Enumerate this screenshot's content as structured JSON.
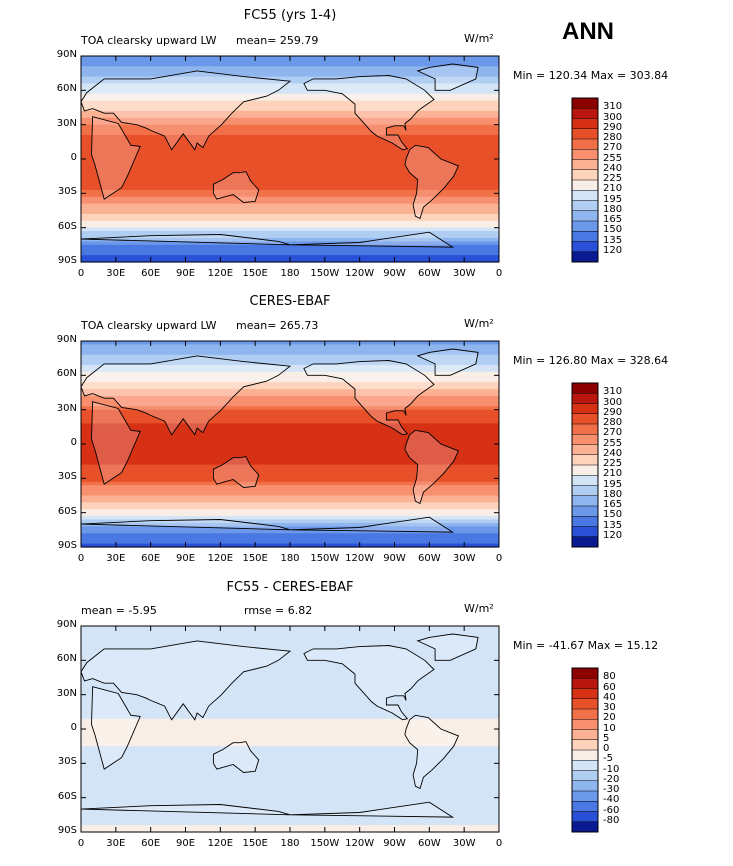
{
  "season": "ANN",
  "panels": [
    {
      "title": "FC55 (yrs 1-4)",
      "left_label": "TOA clearsky upward LW",
      "stat_label": "mean= 259.79",
      "stat2_label": "",
      "units": "W/m²",
      "minmax": "Min = 120.34 Max = 303.84",
      "kind": "field"
    },
    {
      "title": "CERES-EBAF",
      "left_label": "TOA clearsky upward LW",
      "stat_label": "mean= 265.73",
      "stat2_label": "",
      "units": "W/m²",
      "minmax": "Min = 126.80 Max = 328.64",
      "kind": "field2"
    },
    {
      "title": "FC55 - CERES-EBAF",
      "left_label": "",
      "stat_label": "mean =  -5.95",
      "stat2_label": "rmse =   6.82",
      "units": "W/m²",
      "minmax": "Min = -41.67 Max =  15.12",
      "kind": "diff"
    }
  ],
  "chart_data": [
    {
      "type": "heatmap",
      "title": "FC55 (yrs 1-4)",
      "subtitle": "TOA clearsky upward LW",
      "mean": 259.79,
      "min": 120.34,
      "max": 303.84,
      "units": "W/m²",
      "x_ticks": [
        "0",
        "30E",
        "60E",
        "90E",
        "120E",
        "150E",
        "180",
        "150W",
        "120W",
        "90W",
        "60W",
        "30W",
        "0"
      ],
      "y_ticks": [
        "90N",
        "60N",
        "30N",
        "0",
        "30S",
        "60S",
        "90S"
      ],
      "xlim": [
        0,
        360
      ],
      "ylim": [
        -90,
        90
      ],
      "colorbar_levels": [
        "310",
        "300",
        "290",
        "280",
        "270",
        "255",
        "240",
        "225",
        "210",
        "195",
        "180",
        "165",
        "150",
        "135",
        "120"
      ],
      "colorbar_colors": [
        "#8b0000",
        "#b8160e",
        "#d63015",
        "#e8502a",
        "#f27048",
        "#f89070",
        "#fbb194",
        "#fdd3bb",
        "#f8eee6",
        "#d4e4f7",
        "#b0cdf2",
        "#8eb5ee",
        "#6c98ea",
        "#4a78e2",
        "#2a50d8",
        "#0a1a90"
      ],
      "zonal_profile": [
        {
          "lat": 90,
          "value": 150
        },
        {
          "lat": 75,
          "value": 175
        },
        {
          "lat": 60,
          "value": 205
        },
        {
          "lat": 45,
          "value": 235
        },
        {
          "lat": 30,
          "value": 270
        },
        {
          "lat": 15,
          "value": 285
        },
        {
          "lat": 0,
          "value": 288
        },
        {
          "lat": -15,
          "value": 288
        },
        {
          "lat": -30,
          "value": 278
        },
        {
          "lat": -45,
          "value": 245
        },
        {
          "lat": -60,
          "value": 210
        },
        {
          "lat": -75,
          "value": 150
        },
        {
          "lat": -90,
          "value": 125
        }
      ]
    },
    {
      "type": "heatmap",
      "title": "CERES-EBAF",
      "subtitle": "TOA clearsky upward LW",
      "mean": 265.73,
      "min": 126.8,
      "max": 328.64,
      "units": "W/m²",
      "x_ticks": [
        "0",
        "30E",
        "60E",
        "90E",
        "120E",
        "150E",
        "180",
        "150W",
        "120W",
        "90W",
        "60W",
        "30W",
        "0"
      ],
      "y_ticks": [
        "90N",
        "60N",
        "30N",
        "0",
        "30S",
        "60S",
        "90S"
      ],
      "xlim": [
        0,
        360
      ],
      "ylim": [
        -90,
        90
      ],
      "colorbar_levels": [
        "310",
        "300",
        "290",
        "280",
        "270",
        "255",
        "240",
        "225",
        "210",
        "195",
        "180",
        "165",
        "150",
        "135",
        "120"
      ],
      "colorbar_colors": [
        "#8b0000",
        "#b8160e",
        "#d63015",
        "#e8502a",
        "#f27048",
        "#f89070",
        "#fbb194",
        "#fdd3bb",
        "#f8eee6",
        "#d4e4f7",
        "#b0cdf2",
        "#8eb5ee",
        "#6c98ea",
        "#4a78e2",
        "#2a50d8",
        "#0a1a90"
      ],
      "zonal_profile": [
        {
          "lat": 90,
          "value": 160
        },
        {
          "lat": 75,
          "value": 185
        },
        {
          "lat": 60,
          "value": 215
        },
        {
          "lat": 45,
          "value": 245
        },
        {
          "lat": 30,
          "value": 280
        },
        {
          "lat": 15,
          "value": 292
        },
        {
          "lat": 0,
          "value": 292
        },
        {
          "lat": -15,
          "value": 292
        },
        {
          "lat": -30,
          "value": 285
        },
        {
          "lat": -45,
          "value": 252
        },
        {
          "lat": -60,
          "value": 218
        },
        {
          "lat": -75,
          "value": 155
        },
        {
          "lat": -90,
          "value": 130
        }
      ]
    },
    {
      "type": "heatmap",
      "title": "FC55 - CERES-EBAF",
      "mean": -5.95,
      "rmse": 6.82,
      "min": -41.67,
      "max": 15.12,
      "units": "W/m²",
      "x_ticks": [
        "0",
        "30E",
        "60E",
        "90E",
        "120E",
        "150E",
        "180",
        "150W",
        "120W",
        "90W",
        "60W",
        "30W",
        "0"
      ],
      "y_ticks": [
        "90N",
        "60N",
        "30N",
        "0",
        "30S",
        "60S",
        "90S"
      ],
      "xlim": [
        0,
        360
      ],
      "ylim": [
        -90,
        90
      ],
      "colorbar_levels": [
        "80",
        "60",
        "40",
        "30",
        "20",
        "10",
        "5",
        "0",
        "-5",
        "-10",
        "-20",
        "-30",
        "-40",
        "-60",
        "-80"
      ],
      "colorbar_colors": [
        "#8b0000",
        "#b8160e",
        "#d63015",
        "#e8502a",
        "#f27048",
        "#f89070",
        "#fbb194",
        "#fdd3bb",
        "#f8eee6",
        "#d4e4f7",
        "#b0cdf2",
        "#8eb5ee",
        "#6c98ea",
        "#4a78e2",
        "#2a50d8",
        "#0a1a90"
      ],
      "zonal_profile": [
        {
          "lat": 90,
          "value": -8
        },
        {
          "lat": 60,
          "value": -10
        },
        {
          "lat": 30,
          "value": -8
        },
        {
          "lat": 0,
          "value": -4
        },
        {
          "lat": -30,
          "value": -6
        },
        {
          "lat": -60,
          "value": -10
        },
        {
          "lat": -90,
          "value": -4
        }
      ]
    }
  ]
}
